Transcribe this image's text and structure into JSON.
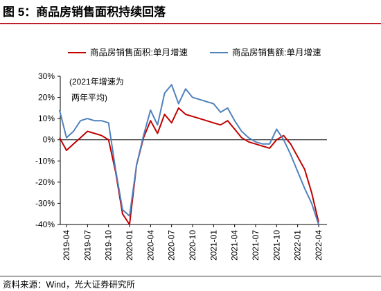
{
  "figure_title": "图 5：商品房销售面积持续回落",
  "source_text": "资料来源：Wind，光大证券研究所",
  "colors": {
    "accent": "#bf1f2a",
    "area_series": "#c00000",
    "amount_series": "#4f81bd"
  },
  "chart_data": {
    "type": "line",
    "title": "",
    "xlabel": "",
    "ylabel": "",
    "ylim": [
      -40,
      30
    ],
    "yticks": [
      30,
      20,
      10,
      0,
      -10,
      -20,
      -30,
      -40
    ],
    "ytick_labels": [
      "30%",
      "20%",
      "10%",
      "0%",
      "-10%",
      "-20%",
      "-30%",
      "-40%"
    ],
    "xtick_labels": [
      "2019-04",
      "2019-07",
      "2019-10",
      "2020-01",
      "2020-04",
      "2020-07",
      "2020-10",
      "2021-01",
      "2021-04",
      "2021-07",
      "2021-10",
      "2022-01",
      "2022-04"
    ],
    "x": [
      "2019-03",
      "2019-04",
      "2019-05",
      "2019-06",
      "2019-07",
      "2019-08",
      "2019-09",
      "2019-10",
      "2019-11",
      "2019-12",
      "2020-01",
      "2020-02",
      "2020-03",
      "2020-04",
      "2020-05",
      "2020-06",
      "2020-07",
      "2020-08",
      "2020-09",
      "2020-10",
      "2020-11",
      "2020-12",
      "2021-01",
      "2021-02",
      "2021-03",
      "2021-04",
      "2021-05",
      "2021-06",
      "2021-07",
      "2021-08",
      "2021-09",
      "2021-10",
      "2021-11",
      "2021-12",
      "2022-01",
      "2022-02",
      "2022-03",
      "2022-04"
    ],
    "annotation": [
      "(2021年增速为",
      "两年平均)"
    ],
    "legend_position": "top",
    "series": [
      {
        "name": "商品房销售面积:单月增速",
        "color": "#c00000",
        "values": [
          1,
          -5,
          -2,
          1,
          4,
          3,
          2,
          0,
          -15,
          -35,
          -40,
          -12,
          1,
          9,
          3,
          12,
          8,
          15,
          12,
          11,
          10,
          9,
          8,
          7,
          9,
          5,
          1,
          -1,
          -2,
          -3,
          -4,
          0,
          2,
          -2,
          -8,
          -14,
          -25,
          -39
        ]
      },
      {
        "name": "商品房销售额:单月增速",
        "color": "#4f81bd",
        "values": [
          14,
          1,
          4,
          9,
          10,
          9,
          9,
          8,
          -14,
          -33,
          -36,
          -12,
          2,
          14,
          7,
          22,
          26,
          17,
          24,
          20,
          19,
          18,
          17,
          13,
          15,
          9,
          4,
          1,
          -1,
          -2,
          -2,
          5,
          0,
          -7,
          -15,
          -23,
          -30,
          -40
        ]
      }
    ]
  }
}
